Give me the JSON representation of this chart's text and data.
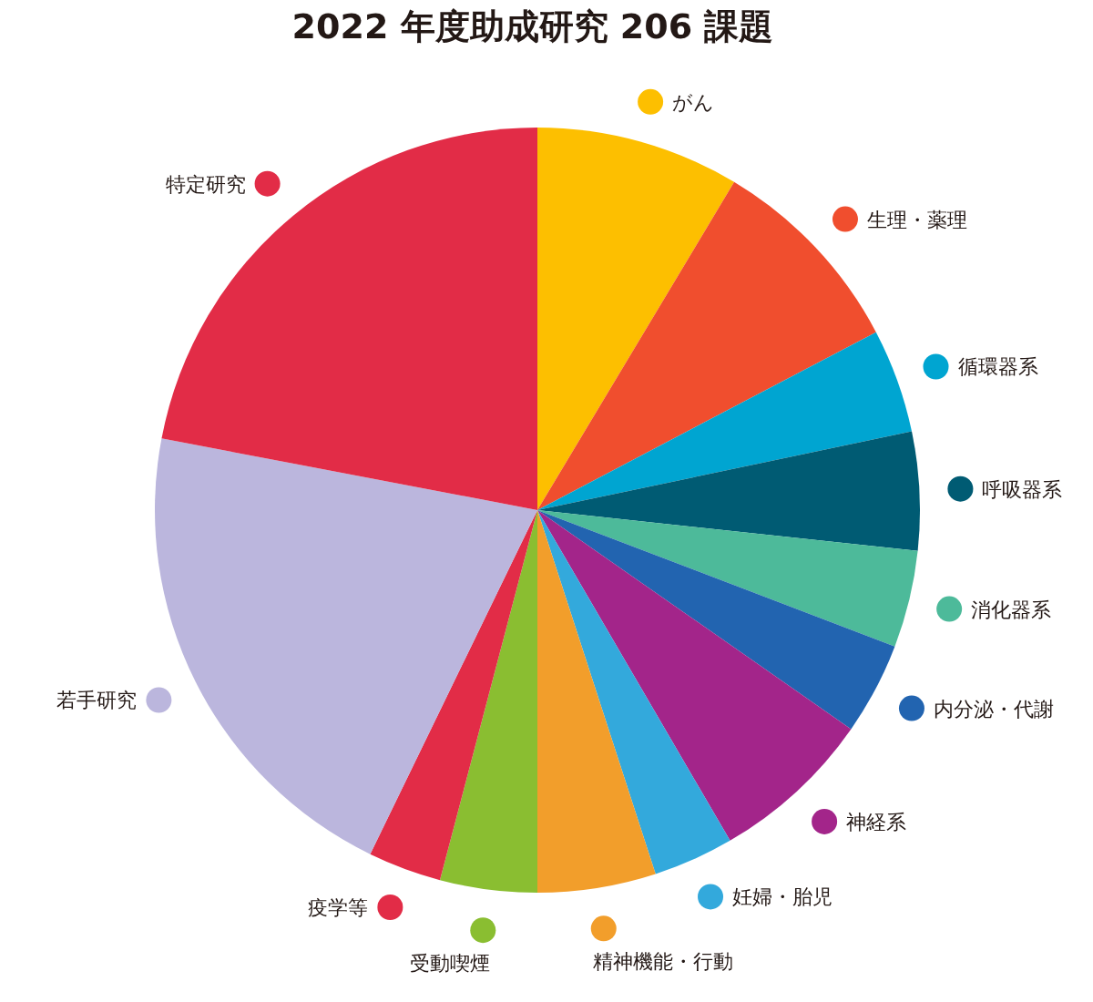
{
  "chart_data": {
    "type": "pie",
    "legend": "right",
    "title": "2022 年度助成研究 206 課題",
    "categories": [
      "がん",
      "生理・薬理",
      "循環器系",
      "呼吸器系",
      "消化器系",
      "内分泌・代謝",
      "神経系",
      "妊婦・胎児",
      "精神機能・行動",
      "受動喫煙",
      "疫学等",
      "若手研究",
      "特定研究"
    ],
    "values": [
      8.6,
      8.7,
      4.4,
      5.0,
      4.1,
      3.9,
      6.9,
      3.4,
      5.0,
      4.1,
      3.1,
      20.8,
      22.0
    ],
    "colors": [
      "#fdbf00",
      "#f04e2e",
      "#00a5d1",
      "#005b73",
      "#4dba9a",
      "#2264b0",
      "#a3258a",
      "#33a9dc",
      "#f29e2b",
      "#8abe31",
      "#e22c47",
      "#bbb6dd",
      "#e22c47"
    ]
  }
}
